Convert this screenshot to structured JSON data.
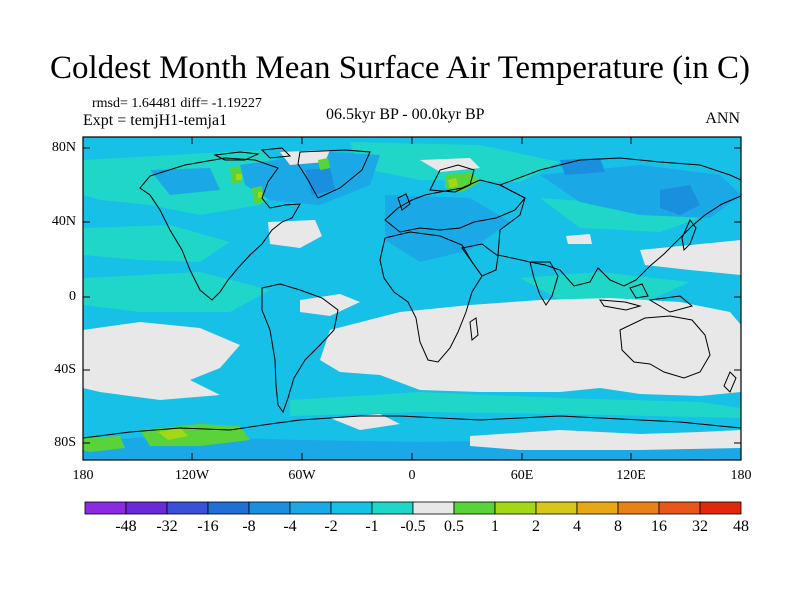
{
  "title": "Coldest Month Mean Surface Air Temperature (in C)",
  "stats": "rmsd= 1.64481 diff= -1.19227",
  "expt": "Expt = temjH1-temja1",
  "period": "06.5kyr BP - 00.0kyr BP",
  "season": "ANN",
  "lat_labels": [
    "80N",
    "40N",
    "0",
    "40S",
    "80S"
  ],
  "lon_labels": [
    "180",
    "120W",
    "60W",
    "0",
    "60E",
    "120E",
    "180"
  ],
  "colorbar": {
    "labels": [
      "-48",
      "-32",
      "-16",
      "-8",
      "-4",
      "-2",
      "-1",
      "-0.5",
      "0.5",
      "1",
      "2",
      "4",
      "8",
      "16",
      "32",
      "48"
    ],
    "colors": [
      "#8a2be2",
      "#6a2ad8",
      "#3a50d8",
      "#1f6fd6",
      "#1a8fdd",
      "#1aa8e6",
      "#16c0e6",
      "#20d6c8",
      "#e8e8e8",
      "#5ad23a",
      "#a2d816",
      "#d6c81a",
      "#e6a814",
      "#e88214",
      "#e8561a",
      "#e0280e"
    ]
  }
}
